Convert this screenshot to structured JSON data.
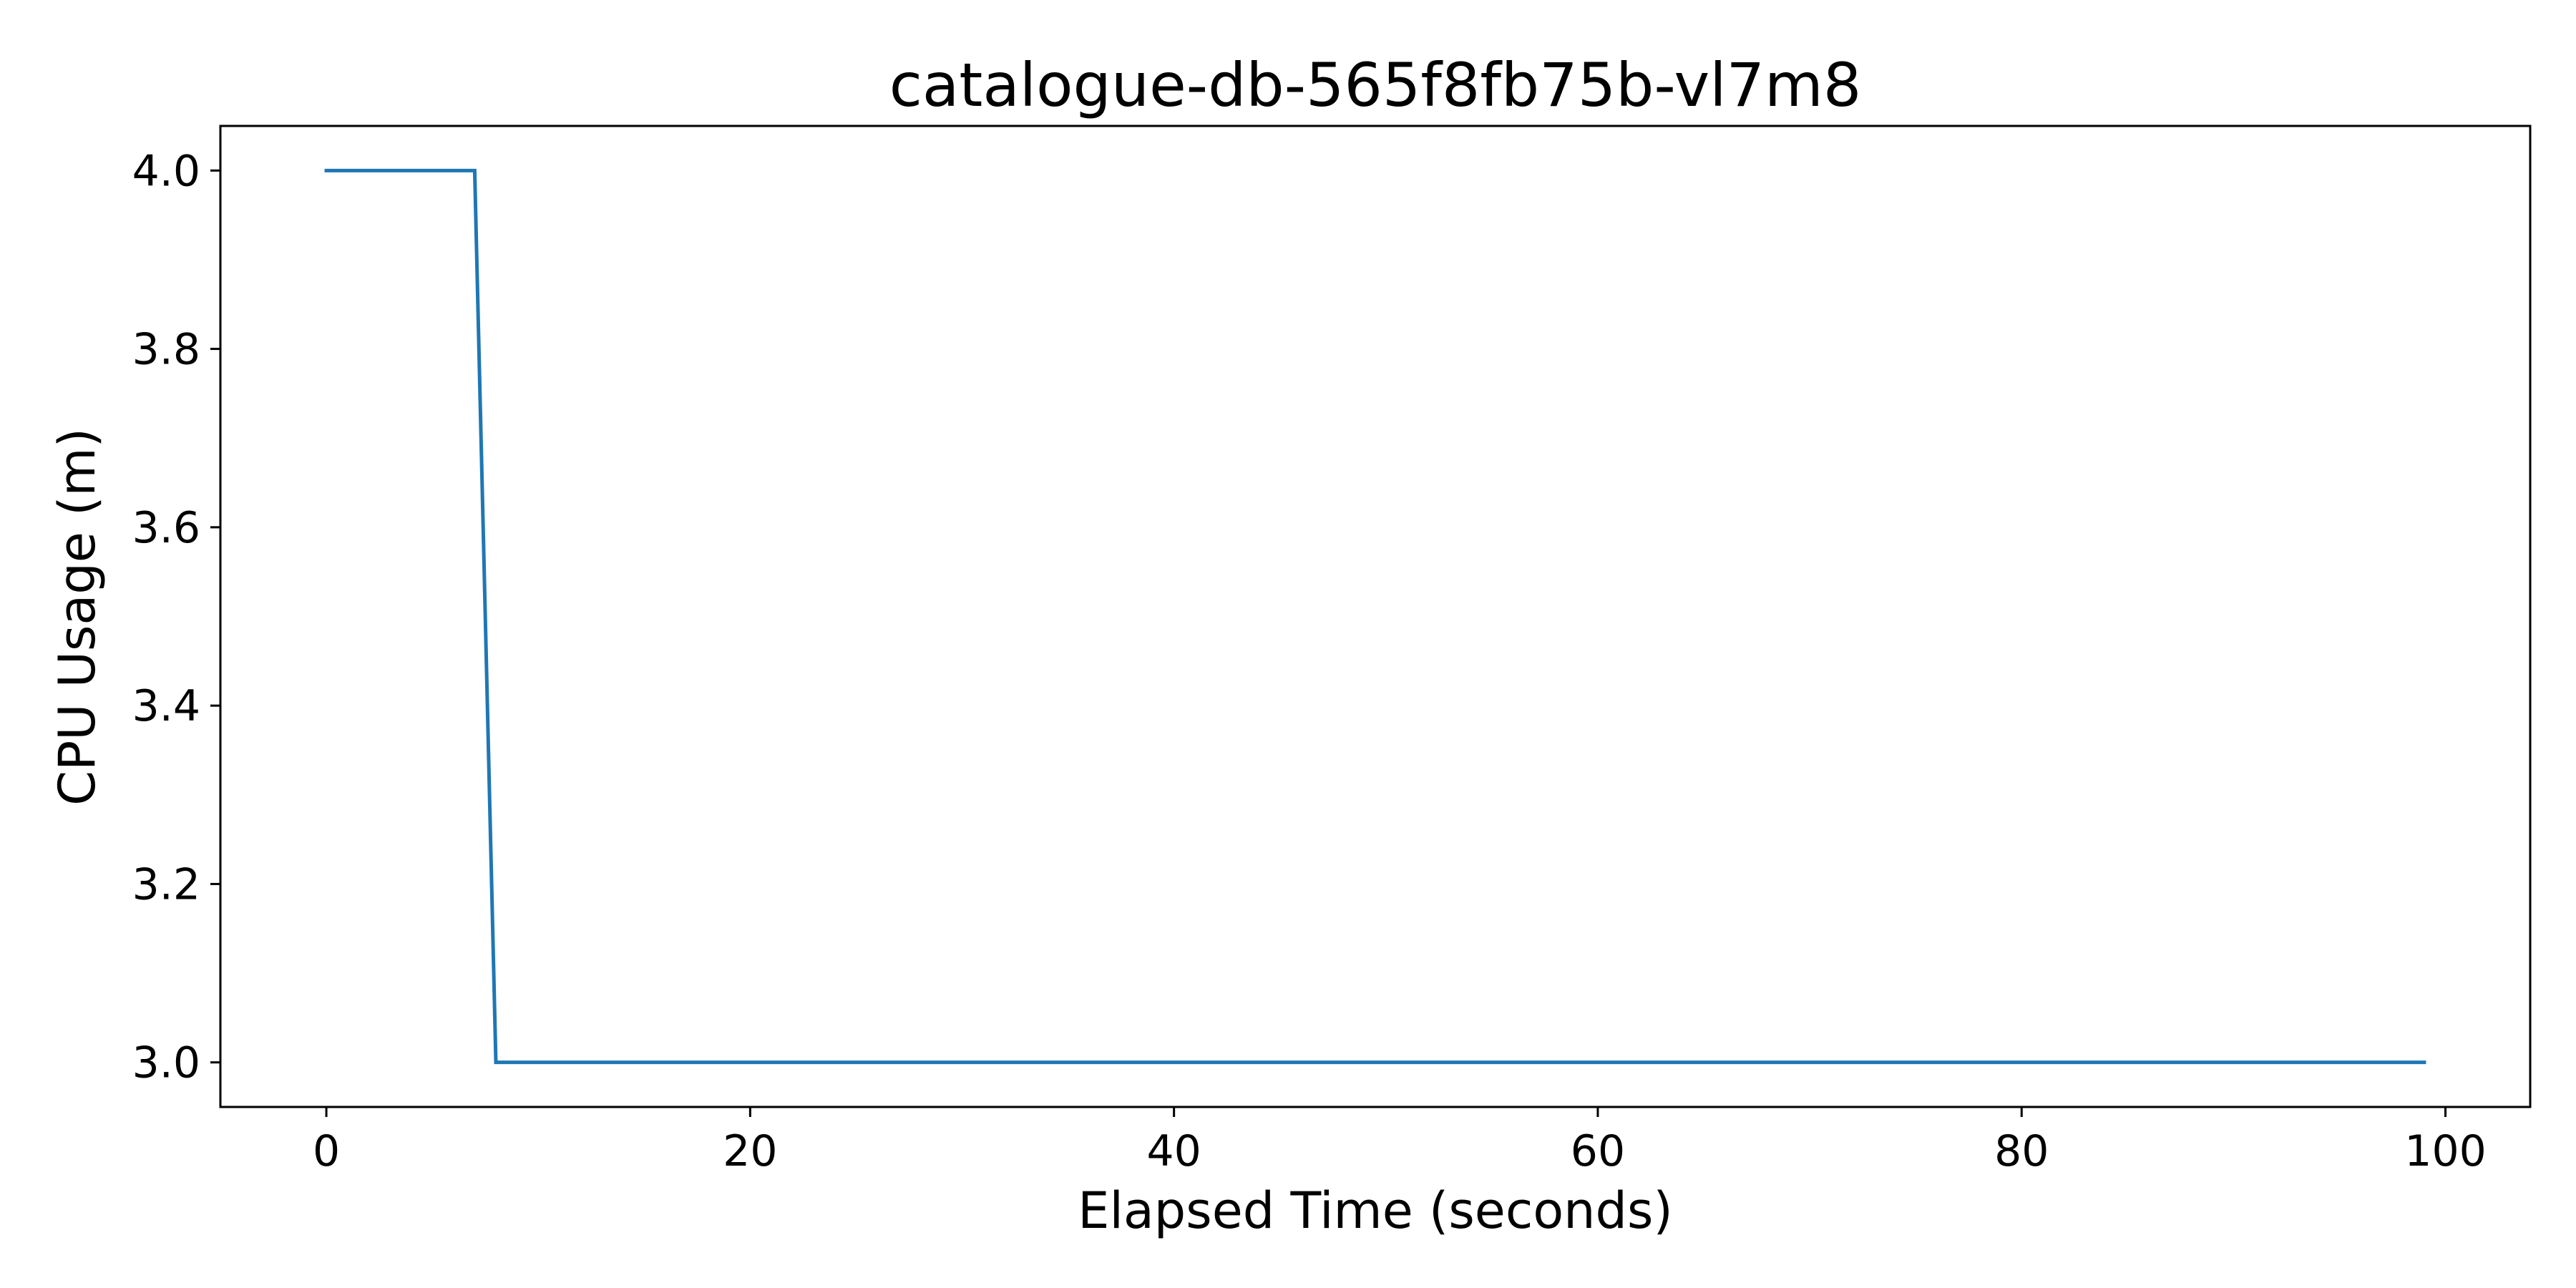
{
  "chart_data": {
    "type": "line",
    "title": "catalogue-db-565f8fb75b-vl7m8",
    "xlabel": "Elapsed Time (seconds)",
    "ylabel": "CPU Usage (m)",
    "xlim": [
      -5,
      104
    ],
    "ylim": [
      2.95,
      4.05
    ],
    "xticks": [
      0,
      20,
      40,
      60,
      80,
      100
    ],
    "xtick_labels": [
      "0",
      "20",
      "40",
      "60",
      "80",
      "100"
    ],
    "yticks": [
      3.0,
      3.2,
      3.4,
      3.6,
      3.8,
      4.0
    ],
    "ytick_labels": [
      "3.0",
      "3.2",
      "3.4",
      "3.6",
      "3.8",
      "4.0"
    ],
    "grid": false,
    "series": [
      {
        "color": "#1f77b4",
        "x": [
          0,
          1,
          2,
          3,
          4,
          5,
          6,
          7,
          8,
          9,
          10,
          20,
          30,
          40,
          50,
          60,
          70,
          80,
          90,
          99
        ],
        "y": [
          4.0,
          4.0,
          4.0,
          4.0,
          4.0,
          4.0,
          4.0,
          4.0,
          3.0,
          3.0,
          3.0,
          3.0,
          3.0,
          3.0,
          3.0,
          3.0,
          3.0,
          3.0,
          3.0,
          3.0
        ]
      }
    ]
  }
}
